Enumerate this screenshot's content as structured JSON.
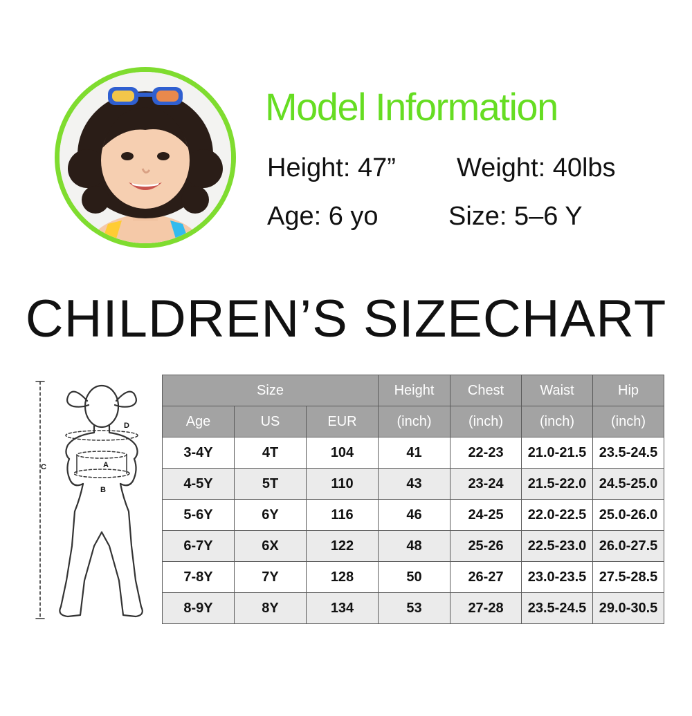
{
  "model": {
    "title": "Model Information",
    "height": "Height: 47”",
    "weight": "Weight: 40lbs",
    "age": "Age: 6 yo",
    "size": "Size: 5–6 Y",
    "accent_color": "#66dd22"
  },
  "headline": "CHILDREN’S SIZECHART",
  "figure": {
    "labels": {
      "a": "A",
      "b": "B",
      "c": "C",
      "d": "D"
    }
  },
  "table": {
    "group_header": "Size",
    "headers_top": [
      "Height",
      "Chest",
      "Waist",
      "Hip"
    ],
    "headers_sub": [
      "Age",
      "US",
      "EUR",
      "(inch)",
      "(inch)",
      "(inch)",
      "(inch)"
    ],
    "rows": [
      [
        "3-4Y",
        "4T",
        "104",
        "41",
        "22-23",
        "21.0-21.5",
        "23.5-24.5"
      ],
      [
        "4-5Y",
        "5T",
        "110",
        "43",
        "23-24",
        "21.5-22.0",
        "24.5-25.0"
      ],
      [
        "5-6Y",
        "6Y",
        "116",
        "46",
        "24-25",
        "22.0-22.5",
        "25.0-26.0"
      ],
      [
        "6-7Y",
        "6X",
        "122",
        "48",
        "25-26",
        "22.5-23.0",
        "26.0-27.5"
      ],
      [
        "7-8Y",
        "7Y",
        "128",
        "50",
        "26-27",
        "23.0-23.5",
        "27.5-28.5"
      ],
      [
        "8-9Y",
        "8Y",
        "134",
        "53",
        "27-28",
        "23.5-24.5",
        "29.0-30.5"
      ]
    ],
    "header_bg": "#a3a3a3",
    "stripe_bg": "#ebebeb"
  }
}
